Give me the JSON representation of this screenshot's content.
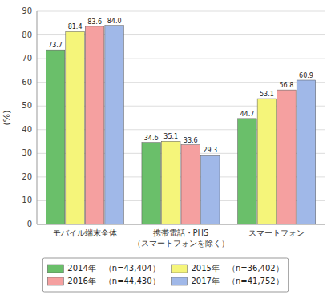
{
  "chart_data": {
    "type": "bar",
    "ylabel": "(%)",
    "categories": [
      "モバイル端末全体",
      "携帯電話・PHS\n（スマートフォンを除く）",
      "スマートフォン"
    ],
    "series": [
      {
        "name": "2014年　（n=43,404）",
        "color": "#6abf6a",
        "values": [
          73.7,
          34.6,
          44.7
        ],
        "value_labels": [
          "73.7",
          "34.6",
          "44.7"
        ]
      },
      {
        "name": "2015年　（n=36,402）",
        "color": "#f5f57a",
        "values": [
          81.4,
          35.1,
          53.1
        ],
        "value_labels": [
          "81.4",
          "35.1",
          "53.1"
        ]
      },
      {
        "name": "2016年　（n=44,430）",
        "color": "#f5a0a0",
        "values": [
          83.6,
          33.6,
          56.8
        ],
        "value_labels": [
          "83.6",
          "33.6",
          "56.8"
        ]
      },
      {
        "name": "2017年　（n=41,752）",
        "color": "#a0b8e8",
        "values": [
          84.0,
          29.3,
          60.9
        ],
        "value_labels": [
          "84.0",
          "29.3",
          "60.9"
        ]
      }
    ],
    "ylim": [
      0,
      90
    ],
    "yticks": [
      0,
      10,
      20,
      30,
      40,
      50,
      60,
      70,
      80,
      90
    ],
    "grid": true,
    "data_labels": true,
    "legend": "bottom"
  }
}
